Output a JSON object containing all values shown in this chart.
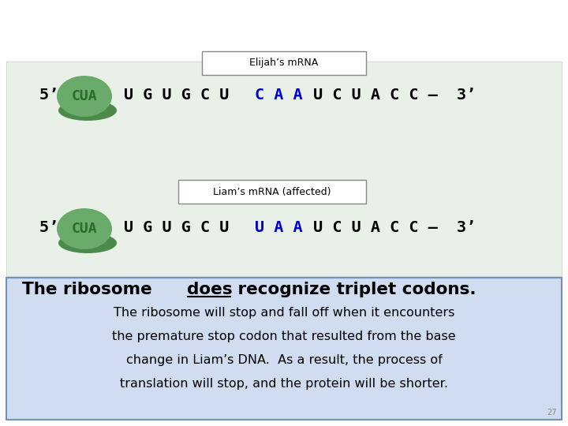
{
  "bg_color": "#ffffff",
  "upper_panel_bg": "#e8f0e8",
  "lower_panel_bg": "#d0dcf0",
  "elijah_label": "Elijah’s mRNA",
  "liam_label": "Liam’s mRNA (affected)",
  "rna_sequence_elijah_normal": "U G U G C U ",
  "rna_sequence_elijah_blue": "C A A",
  "rna_sequence_elijah_suffix": " U C U A C C –  3’",
  "rna_sequence_liam_normal": "U G U G C U ",
  "rna_sequence_liam_blue": "U A A",
  "rna_sequence_liam_suffix": " U C U A C C –  3’",
  "body_text_line1": "The ribosome will stop and fall off when it encounters",
  "body_text_line2": "the premature stop codon that resulted from the base",
  "body_text_line3": "change in Liam’s DNA.  As a result, the process of",
  "body_text_line4": "translation will stop, and the protein will be shorter.",
  "page_number": "27",
  "ribosome_color": "#6aaa6a",
  "ribosome_shadow_color": "#4a8a4a",
  "black": "#000000",
  "blue": "#0000cc",
  "dark_green": "#2a6a2a",
  "box_border_color": "#888888",
  "lower_border_color": "#7090c0"
}
